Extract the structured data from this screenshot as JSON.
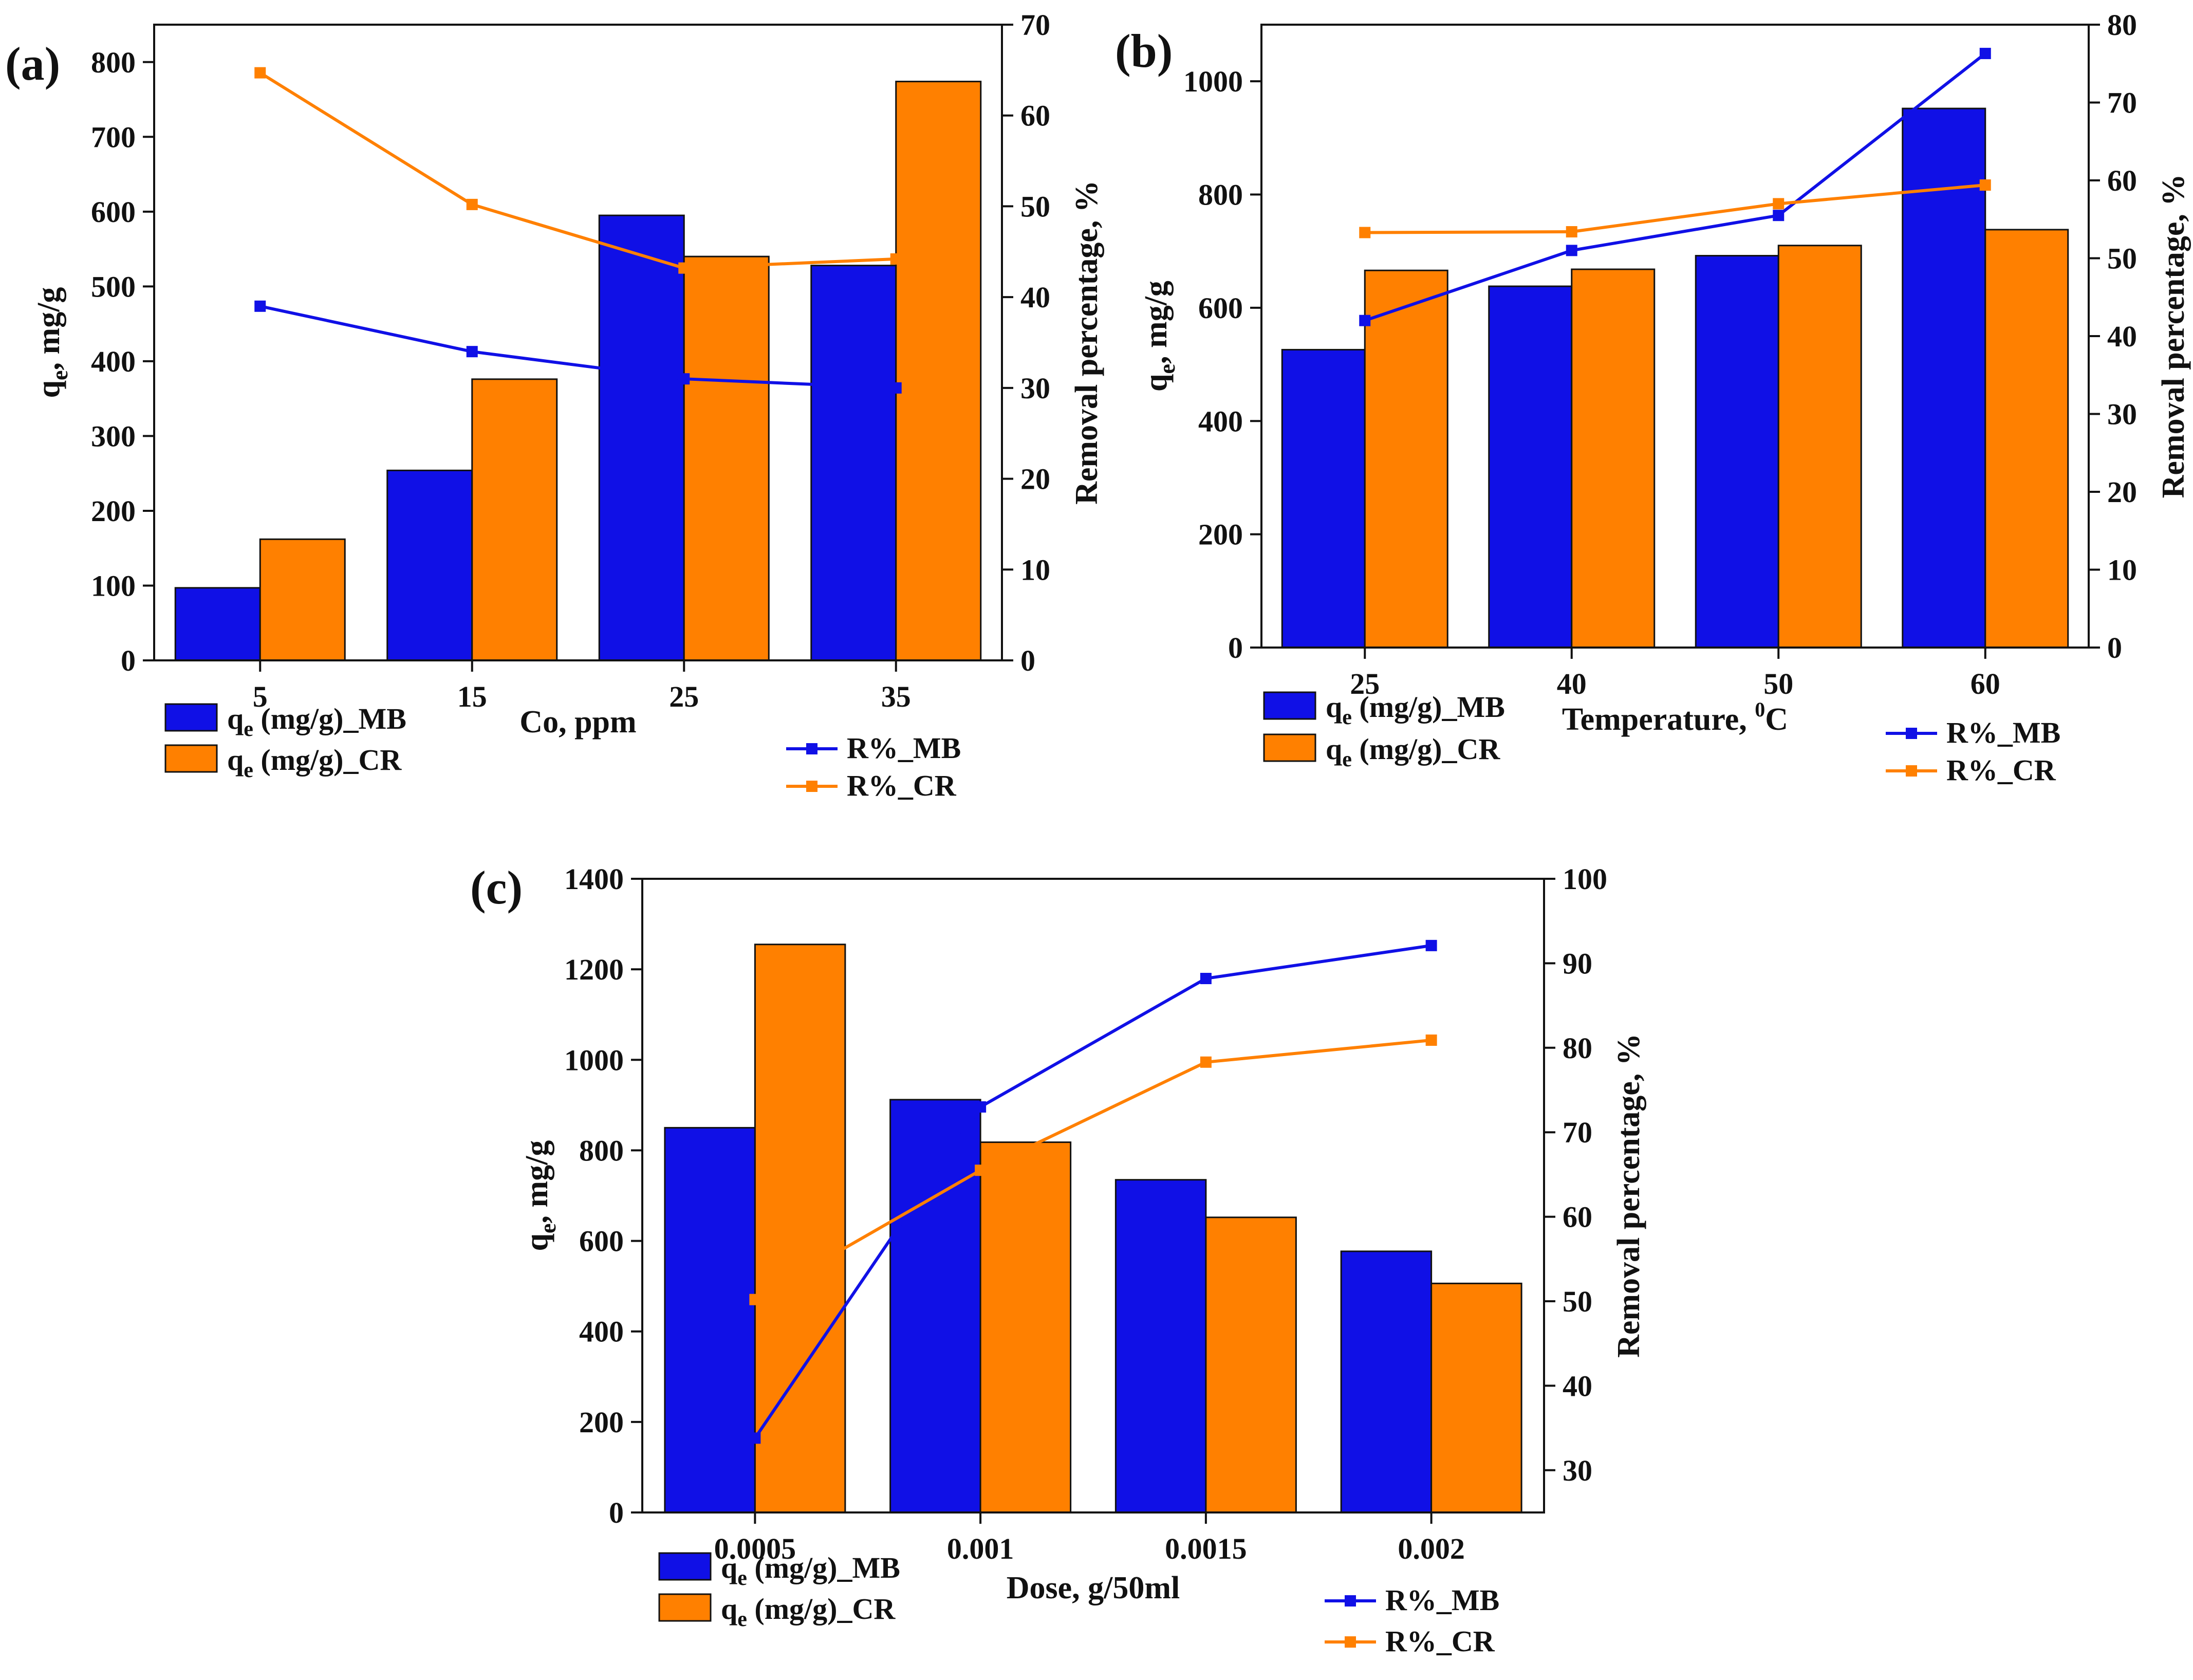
{
  "colors": {
    "mb": "#1010e6",
    "cr": "#ff8000",
    "axis": "#111111"
  },
  "chart_data": [
    {
      "type": "bar",
      "panel_label": "(a)",
      "categories": [
        "5",
        "15",
        "25",
        "35"
      ],
      "xlabel": "Co, ppm",
      "ylabel_main": "q",
      "ylabel_sub": "e",
      "ylabel_rest": ", mg/g",
      "ylabel_right": "Removal percentage, %",
      "ylim": [
        0,
        850
      ],
      "yticks": [
        0,
        100,
        200,
        300,
        400,
        500,
        600,
        700,
        800
      ],
      "ylim_right": [
        0,
        70
      ],
      "yticks_right": [
        0,
        10,
        20,
        30,
        40,
        50,
        60,
        70
      ],
      "bar_series": [
        {
          "name": "qe (mg/g)_MB",
          "color_key": "mb",
          "values": [
            97,
            254,
            595,
            528
          ]
        },
        {
          "name": "qe (mg/g)_CR",
          "color_key": "cr",
          "values": [
            162,
            376,
            540,
            774
          ]
        }
      ],
      "line_series": [
        {
          "name": "R%_MB",
          "color_key": "mb",
          "values": [
            39.0,
            34.0,
            31.0,
            30.0
          ]
        },
        {
          "name": "R%_CR",
          "color_key": "cr",
          "values": [
            64.7,
            50.2,
            43.2,
            44.2
          ]
        }
      ],
      "legend": {
        "bar_labels": [
          {
            "main": "q",
            "sub": "e",
            "rest": " (mg/g)_MB"
          },
          {
            "main": "q",
            "sub": "e",
            "rest": " (mg/g)_CR"
          }
        ],
        "line_labels": [
          "R%_MB",
          "R%_CR"
        ]
      }
    },
    {
      "type": "bar",
      "panel_label": "(b)",
      "categories": [
        "25",
        "40",
        "50",
        "60"
      ],
      "xlabel": "Temperature, ",
      "xlabel_sup": "0",
      "xlabel_tail": "C",
      "ylabel_main": "q",
      "ylabel_sub": "e",
      "ylabel_rest": ", mg/g",
      "ylabel_right": "Removal percentage, %",
      "ylim": [
        0,
        1100
      ],
      "yticks": [
        0,
        200,
        400,
        600,
        800,
        1000
      ],
      "ylim_right": [
        0,
        80
      ],
      "yticks_right": [
        0,
        10,
        20,
        30,
        40,
        50,
        60,
        70,
        80
      ],
      "bar_series": [
        {
          "name": "qe (mg/g)_MB",
          "color_key": "mb",
          "values": [
            526,
            638,
            692,
            952
          ]
        },
        {
          "name": "qe (mg/g)_CR",
          "color_key": "cr",
          "values": [
            666,
            668,
            710,
            738
          ]
        }
      ],
      "line_series": [
        {
          "name": "R%_MB",
          "color_key": "mb",
          "values": [
            42.0,
            51.0,
            55.5,
            76.3
          ]
        },
        {
          "name": "R%_CR",
          "color_key": "cr",
          "values": [
            53.3,
            53.4,
            57.0,
            59.4
          ]
        }
      ],
      "legend": {
        "bar_labels": [
          {
            "main": "q",
            "sub": "e",
            "rest": " (mg/g)_MB"
          },
          {
            "main": "q",
            "sub": "e",
            "rest": " (mg/g)_CR"
          }
        ],
        "line_labels": [
          "R%_MB",
          "R%_CR"
        ]
      }
    },
    {
      "type": "bar",
      "panel_label": "(c)",
      "categories": [
        "0.0005",
        "0.001",
        "0.0015",
        "0.002"
      ],
      "xlabel": "Dose, g/50ml",
      "ylabel_main": "q",
      "ylabel_sub": "e",
      "ylabel_rest": ", mg/g",
      "ylabel_right": "Removal percentage, %",
      "ylim": [
        0,
        1400
      ],
      "yticks": [
        0,
        200,
        400,
        600,
        800,
        1000,
        1200,
        1400
      ],
      "ylim_right": [
        25,
        100
      ],
      "yticks_right": [
        30,
        40,
        50,
        60,
        70,
        80,
        90,
        100
      ],
      "bar_series": [
        {
          "name": "qe (mg/g)_MB",
          "color_key": "mb",
          "values": [
            850,
            912,
            735,
            577
          ]
        },
        {
          "name": "qe (mg/g)_CR",
          "color_key": "cr",
          "values": [
            1255,
            818,
            652,
            506
          ]
        }
      ],
      "line_series": [
        {
          "name": "R%_MB",
          "color_key": "mb",
          "values": [
            33.8,
            73.0,
            88.2,
            92.1
          ]
        },
        {
          "name": "R%_CR",
          "color_key": "cr",
          "values": [
            50.2,
            65.5,
            78.3,
            80.9
          ]
        }
      ],
      "legend": {
        "bar_labels": [
          {
            "main": "q",
            "sub": "e",
            "rest": " (mg/g)_MB"
          },
          {
            "main": "q",
            "sub": "e",
            "rest": " (mg/g)_CR"
          }
        ],
        "line_labels": [
          "R%_MB",
          "R%_CR"
        ]
      }
    }
  ]
}
